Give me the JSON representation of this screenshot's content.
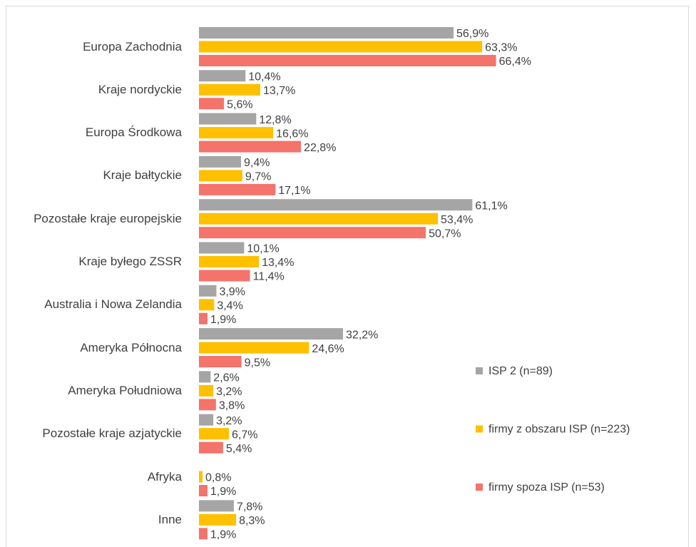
{
  "chart_data": {
    "type": "bar",
    "orientation": "horizontal",
    "categories": [
      "Europa Zachodnia",
      "Kraje nordyckie",
      "Europa Środkowa",
      "Kraje bałtyckie",
      "Pozostałe kraje europejskie",
      "Kraje byłego ZSSR",
      "Australia i Nowa Zelandia",
      "Ameryka Północna",
      "Ameryka Południowa",
      "Pozostałe kraje azjatyckie",
      "Afryka",
      "Inne"
    ],
    "series": [
      {
        "name": "ISP 2 (n=89)",
        "color": "#a5a5a5",
        "values": [
          56.9,
          10.4,
          12.8,
          9.4,
          61.1,
          10.1,
          3.9,
          32.2,
          2.6,
          3.2,
          null,
          7.8
        ],
        "value_labels": [
          "56,9%",
          "10,4%",
          "12,8%",
          "9,4%",
          "61,1%",
          "10,1%",
          "3,9%",
          "32,2%",
          "2,6%",
          "3,2%",
          null,
          "7,8%"
        ]
      },
      {
        "name": "firmy z obszaru ISP (n=223)",
        "color": "#ffc000",
        "values": [
          63.3,
          13.7,
          16.6,
          9.7,
          53.4,
          13.4,
          3.4,
          24.6,
          3.2,
          6.7,
          0.8,
          8.3
        ],
        "value_labels": [
          "63,3%",
          "13,7%",
          "16,6%",
          "9,7%",
          "53,4%",
          "13,4%",
          "3,4%",
          "24,6%",
          "3,2%",
          "6,7%",
          "0,8%",
          "8,3%"
        ]
      },
      {
        "name": "firmy spoza ISP (n=53)",
        "color": "#f4736b",
        "values": [
          66.4,
          5.6,
          22.8,
          17.1,
          50.7,
          11.4,
          1.9,
          9.5,
          3.8,
          5.4,
          1.9,
          1.9
        ],
        "value_labels": [
          "66,4%",
          "5,6%",
          "22,8%",
          "17,1%",
          "50,7%",
          "11,4%",
          "1,9%",
          "9,5%",
          "3,8%",
          "5,4%",
          "1,9%",
          "1,9%"
        ]
      }
    ],
    "legend": "right"
  }
}
